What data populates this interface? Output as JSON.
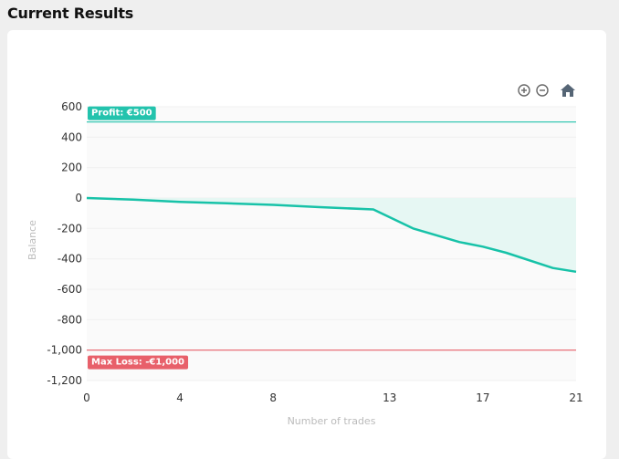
{
  "page": {
    "title": "Current Results"
  },
  "toolbar": {
    "zoom_in_icon": "zoom-in-icon",
    "zoom_out_icon": "zoom-out-icon",
    "home_icon": "home-icon"
  },
  "colors": {
    "series": "#17c2a8",
    "profit": "#23c3ad",
    "loss": "#e8606a",
    "area": "#e6f7f3",
    "plot_bg": "#fafafa"
  },
  "chart_data": {
    "type": "area",
    "xlabel": "Number of trades",
    "ylabel": "Balance",
    "x_ticks": [
      "0",
      "4",
      "8",
      "13",
      "17",
      "21"
    ],
    "y_ticks": [
      "600",
      "400",
      "200",
      "0",
      "-200",
      "-400",
      "-600",
      "-800",
      "-1,000",
      "-1,200"
    ],
    "x_range": [
      0,
      21
    ],
    "y_range": [
      -1200,
      600
    ],
    "series": [
      {
        "x": [
          0,
          2,
          4,
          6,
          8,
          10,
          12.3,
          14,
          16,
          17,
          18,
          20,
          21
        ],
        "y": [
          0,
          -10,
          -25,
          -35,
          -45,
          -60,
          -75,
          -200,
          -290,
          -320,
          -360,
          -460,
          -485
        ]
      }
    ],
    "annotations": [
      {
        "label": "Profit: €500",
        "value": 500,
        "kind": "profit"
      },
      {
        "label": "Max Loss: -€1,000",
        "value": -1000,
        "kind": "loss"
      }
    ]
  }
}
